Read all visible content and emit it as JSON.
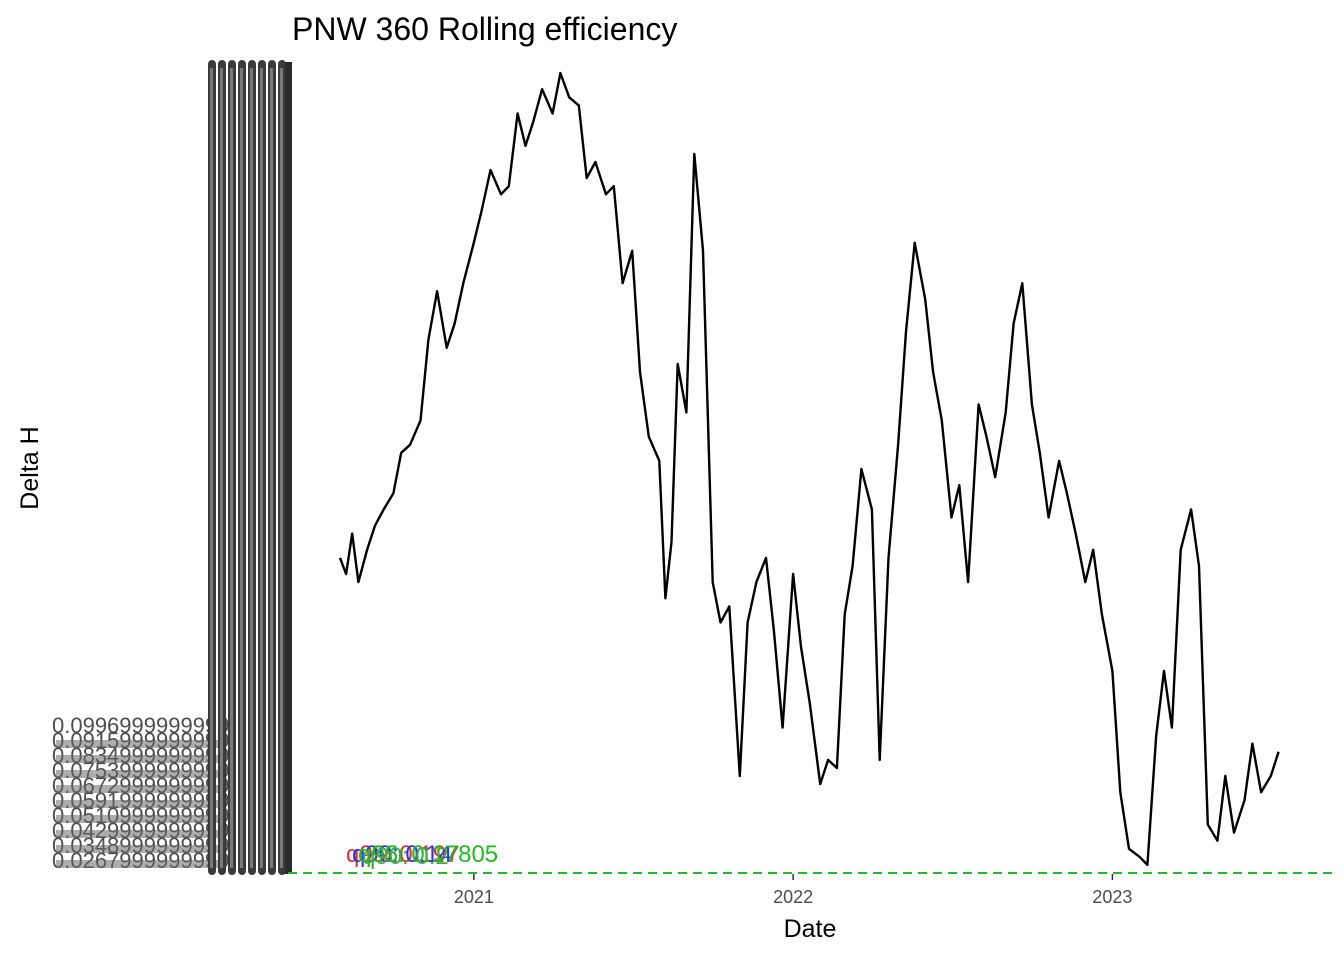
{
  "chart_data": {
    "type": "line",
    "title": "PNW 360 Rolling efficiency",
    "xlabel": "Date",
    "ylabel": "Delta H",
    "x_ticks": [
      "2021",
      "2022",
      "2023"
    ],
    "x_range": [
      "2020-08-01",
      "2023-07-15"
    ],
    "legend": "none",
    "grid": false,
    "y_tick_labels_overplotted": [
      "0.0996999999999",
      "0.0915999999999",
      "0.0834999999999",
      "0.0753999999999",
      "0.0672999999999",
      "0.0591999999999",
      "0.0510999999999",
      "0.0429999999999",
      "0.0348999999999",
      "0.0267999999999"
    ],
    "y_tick_label_columns": 8,
    "reference_line": {
      "y": 0,
      "color": "#22bb22",
      "dash": true
    },
    "quantile_labels": [
      {
        "text": "q95: 0.197",
        "color": "#dd3333"
      },
      {
        "text": "q90: 0.14",
        "color": "#3333dd"
      },
      {
        "text": "q95: 0.17805",
        "color": "#22bb22"
      },
      {
        "text": "q90: 0.2",
        "color": "#44aa44"
      }
    ],
    "series": [
      {
        "color": "#000000",
        "x": [
          "2020-08-01",
          "2020-08-08",
          "2020-08-15",
          "2020-08-22",
          "2020-09-01",
          "2020-09-10",
          "2020-09-20",
          "2020-10-01",
          "2020-10-10",
          "2020-10-20",
          "2020-11-01",
          "2020-11-10",
          "2020-11-20",
          "2020-12-01",
          "2020-12-10",
          "2020-12-20",
          "2021-01-01",
          "2021-01-10",
          "2021-01-20",
          "2021-02-01",
          "2021-02-10",
          "2021-02-20",
          "2021-03-01",
          "2021-03-10",
          "2021-03-20",
          "2021-04-01",
          "2021-04-10",
          "2021-04-20",
          "2021-05-01",
          "2021-05-10",
          "2021-05-20",
          "2021-06-01",
          "2021-06-10",
          "2021-06-20",
          "2021-07-01",
          "2021-07-10",
          "2021-07-20",
          "2021-08-01",
          "2021-08-08",
          "2021-08-15",
          "2021-08-22",
          "2021-09-01",
          "2021-09-10",
          "2021-09-20",
          "2021-10-01",
          "2021-10-10",
          "2021-10-20",
          "2021-11-01",
          "2021-11-10",
          "2021-11-20",
          "2021-12-01",
          "2021-12-10",
          "2021-12-20",
          "2022-01-01",
          "2022-01-10",
          "2022-01-20",
          "2022-02-01",
          "2022-02-10",
          "2022-02-20",
          "2022-03-01",
          "2022-03-10",
          "2022-03-20",
          "2022-04-01",
          "2022-04-10",
          "2022-04-20",
          "2022-05-01",
          "2022-05-10",
          "2022-05-20",
          "2022-06-01",
          "2022-06-10",
          "2022-06-20",
          "2022-07-01",
          "2022-07-10",
          "2022-07-20",
          "2022-08-01",
          "2022-08-10",
          "2022-08-20",
          "2022-09-01",
          "2022-09-10",
          "2022-09-20",
          "2022-10-01",
          "2022-10-10",
          "2022-10-20",
          "2022-11-01",
          "2022-11-10",
          "2022-11-20",
          "2022-12-01",
          "2022-12-10",
          "2022-12-20",
          "2023-01-01",
          "2023-01-10",
          "2023-01-20",
          "2023-02-01",
          "2023-02-10",
          "2023-02-20",
          "2023-03-01",
          "2023-03-10",
          "2023-03-20",
          "2023-04-01",
          "2023-04-10",
          "2023-04-20",
          "2023-05-01",
          "2023-05-10",
          "2023-05-20",
          "2023-06-01",
          "2023-06-10",
          "2023-06-20",
          "2023-07-01",
          "2023-07-10"
        ],
        "y": [
          0.39,
          0.37,
          0.42,
          0.36,
          0.4,
          0.43,
          0.45,
          0.47,
          0.52,
          0.53,
          0.56,
          0.66,
          0.72,
          0.65,
          0.68,
          0.73,
          0.78,
          0.82,
          0.87,
          0.84,
          0.85,
          0.94,
          0.9,
          0.93,
          0.97,
          0.94,
          0.99,
          0.96,
          0.95,
          0.86,
          0.88,
          0.84,
          0.85,
          0.73,
          0.77,
          0.62,
          0.54,
          0.51,
          0.34,
          0.41,
          0.63,
          0.57,
          0.89,
          0.77,
          0.36,
          0.31,
          0.33,
          0.12,
          0.31,
          0.36,
          0.39,
          0.3,
          0.18,
          0.37,
          0.28,
          0.21,
          0.11,
          0.14,
          0.13,
          0.32,
          0.38,
          0.5,
          0.45,
          0.14,
          0.39,
          0.53,
          0.67,
          0.78,
          0.71,
          0.62,
          0.56,
          0.44,
          0.48,
          0.36,
          0.58,
          0.54,
          0.49,
          0.57,
          0.68,
          0.73,
          0.58,
          0.52,
          0.44,
          0.51,
          0.47,
          0.42,
          0.36,
          0.4,
          0.32,
          0.25,
          0.1,
          0.03,
          0.02,
          0.01,
          0.17,
          0.25,
          0.18,
          0.4,
          0.45,
          0.38,
          0.06,
          0.04,
          0.12,
          0.05,
          0.09,
          0.16,
          0.1,
          0.12,
          0.15
        ]
      }
    ]
  }
}
